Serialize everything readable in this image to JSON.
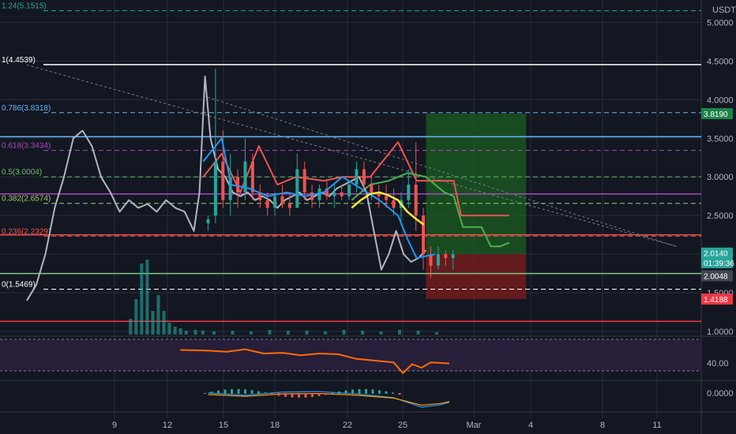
{
  "app": {
    "currency_label": "USDT"
  },
  "colors": {
    "background": "#131722",
    "grid": "#2a2e39",
    "axis_text": "#b2b5be",
    "price_line": "#b2b5be",
    "candle_up": "#26a69a",
    "candle_down": "#ef5350",
    "ma_yellow": "#ffeb3b",
    "ma_blue": "#2196f3",
    "ichimoku_red": "#ef5350",
    "ichimoku_green": "#4caf50",
    "rsi_line": "#ff6d00",
    "rsi_band": "#2a1f3d",
    "macd_line": "#2196f3",
    "signal_line": "#ff9800",
    "long_profit": "#1b5e20",
    "long_stop": "#7f1d1d",
    "tag_green": "#26a69a",
    "tag_gray": "#434651",
    "tag_red": "#f23645",
    "tag_darkgreen": "#1e8449"
  },
  "chart_data": {
    "type": "line",
    "y_axis_ticks": [
      "5.0000",
      "4.5000",
      "4.0000",
      "3.5000",
      "3.0000",
      "2.5000",
      "2.0000",
      "1.5000",
      "1.0000"
    ],
    "x_axis_ticks": [
      "9",
      "12",
      "15",
      "18",
      "22",
      "25",
      "Mar",
      "4",
      "8",
      "11"
    ],
    "fib_levels": [
      {
        "label": "1.24(5.1515)",
        "value": 5.1515,
        "color": "#26a69a"
      },
      {
        "label": "1(4.4539)",
        "value": 4.4539,
        "color": "#ffffff"
      },
      {
        "label": "0.786(3.8318)",
        "value": 3.8318,
        "color": "#64b5f6"
      },
      {
        "label": "0.618(3.3434)",
        "value": 3.3434,
        "color": "#ab47bc"
      },
      {
        "label": "0.5(3.0004)",
        "value": 3.0004,
        "color": "#66bb6a"
      },
      {
        "label": "0.382(2.6574)",
        "value": 2.6574,
        "color": "#9ccc65"
      },
      {
        "label": "0.236(2.2329)",
        "value": 2.2329,
        "color": "#ef5350"
      },
      {
        "label": "0(1.5469)",
        "value": 1.5469,
        "color": "#ffffff"
      }
    ],
    "horizontal_lines": [
      {
        "value": 3.52,
        "color": "#64b5f6"
      },
      {
        "value": 2.78,
        "color": "#ab47bc"
      },
      {
        "value": 2.25,
        "color": "#ef5350"
      },
      {
        "value": 1.75,
        "color": "#81c784"
      },
      {
        "value": 1.13,
        "color": "#f23645"
      }
    ],
    "price_tags": [
      {
        "label": "3.8190",
        "value": 3.819,
        "color": "#1e8449"
      },
      {
        "label": "2.0140",
        "value": 2.014,
        "color": "#26a69a"
      },
      {
        "label": "01:39:36",
        "value": 1.89,
        "color": "#26a69a"
      },
      {
        "label": "2.0048",
        "value": 1.72,
        "color": "#434651"
      },
      {
        "label": "1.4188",
        "value": 1.4188,
        "color": "#f23645"
      }
    ],
    "rsi_tick": "40.00",
    "macd_tick": "0.0000",
    "price_series": {
      "name": "",
      "points": [
        [
          0.0,
          1.4
        ],
        [
          0.5,
          1.6
        ],
        [
          1.0,
          2.0
        ],
        [
          1.5,
          2.6
        ],
        [
          2.0,
          3.0
        ],
        [
          2.5,
          3.5
        ],
        [
          3.0,
          3.6
        ],
        [
          3.5,
          3.4
        ],
        [
          4.0,
          3.0
        ],
        [
          4.5,
          2.8
        ],
        [
          5.0,
          2.55
        ],
        [
          5.5,
          2.7
        ],
        [
          6.0,
          2.6
        ],
        [
          6.5,
          2.65
        ],
        [
          7.0,
          2.55
        ],
        [
          7.5,
          2.7
        ],
        [
          8.0,
          2.6
        ],
        [
          8.5,
          2.55
        ],
        [
          9.0,
          2.3
        ],
        [
          9.3,
          2.8
        ],
        [
          9.6,
          4.3
        ],
        [
          9.9,
          3.5
        ],
        [
          10.3,
          3.1
        ],
        [
          10.7,
          3.0
        ],
        [
          11.1,
          2.8
        ],
        [
          11.5,
          2.75
        ],
        [
          11.9,
          2.8
        ],
        [
          12.3,
          2.7
        ],
        [
          12.7,
          2.75
        ],
        [
          13.1,
          2.7
        ],
        [
          13.5,
          2.6
        ],
        [
          13.9,
          2.7
        ],
        [
          14.3,
          2.75
        ],
        [
          14.7,
          2.8
        ],
        [
          15.1,
          2.7
        ],
        [
          15.5,
          2.75
        ],
        [
          15.9,
          2.8
        ],
        [
          16.3,
          2.75
        ],
        [
          16.7,
          2.85
        ],
        [
          17.1,
          2.9
        ],
        [
          17.5,
          2.95
        ],
        [
          17.9,
          3.0
        ],
        [
          18.3,
          2.8
        ],
        [
          18.7,
          2.3
        ],
        [
          19.1,
          1.8
        ],
        [
          19.5,
          2.0
        ],
        [
          19.9,
          2.3
        ],
        [
          20.3,
          2.0
        ],
        [
          20.7,
          1.9
        ],
        [
          21.1,
          1.95
        ],
        [
          21.5,
          2.05
        ]
      ]
    },
    "candle_series": {
      "name": "",
      "ohlc": [
        [
          9.0,
          2.4,
          2.5,
          2.3,
          2.45
        ],
        [
          9.4,
          2.5,
          4.4,
          2.4,
          3.2
        ],
        [
          9.8,
          3.2,
          3.6,
          2.6,
          2.7
        ],
        [
          10.2,
          2.7,
          3.3,
          2.5,
          3.0
        ],
        [
          10.6,
          3.0,
          3.1,
          2.6,
          2.8
        ],
        [
          11.0,
          2.8,
          3.5,
          2.7,
          3.2
        ],
        [
          11.4,
          3.2,
          3.3,
          2.7,
          2.8
        ],
        [
          11.8,
          2.8,
          2.9,
          2.6,
          2.7
        ],
        [
          12.2,
          2.7,
          2.8,
          2.5,
          2.6
        ],
        [
          12.6,
          2.6,
          2.8,
          2.5,
          2.75
        ],
        [
          13.0,
          2.75,
          2.9,
          2.6,
          2.65
        ],
        [
          13.4,
          2.65,
          2.8,
          2.5,
          2.6
        ],
        [
          13.8,
          2.6,
          3.3,
          2.6,
          3.1
        ],
        [
          14.2,
          3.1,
          3.2,
          2.7,
          2.8
        ],
        [
          14.6,
          2.8,
          2.9,
          2.6,
          2.7
        ],
        [
          15.0,
          2.7,
          2.9,
          2.6,
          2.85
        ],
        [
          15.4,
          2.85,
          2.95,
          2.7,
          2.75
        ],
        [
          15.8,
          2.75,
          2.9,
          2.6,
          2.8
        ],
        [
          16.2,
          2.8,
          2.9,
          2.7,
          2.75
        ],
        [
          16.6,
          2.75,
          2.95,
          2.7,
          2.9
        ],
        [
          17.0,
          2.9,
          3.2,
          2.8,
          3.1
        ],
        [
          17.4,
          3.1,
          3.2,
          2.8,
          2.9
        ],
        [
          17.8,
          2.9,
          3.0,
          2.7,
          2.8
        ],
        [
          18.2,
          2.8,
          2.9,
          2.6,
          2.75
        ],
        [
          18.6,
          2.75,
          2.9,
          2.6,
          2.7
        ],
        [
          19.0,
          2.7,
          2.85,
          2.5,
          2.6
        ],
        [
          19.4,
          2.6,
          2.8,
          2.4,
          2.7
        ],
        [
          19.8,
          2.7,
          3.1,
          2.6,
          2.9
        ],
        [
          20.2,
          2.9,
          3.45,
          2.3,
          2.5
        ],
        [
          20.6,
          2.5,
          2.6,
          1.8,
          2.0
        ],
        [
          21.0,
          2.0,
          2.1,
          1.7,
          1.85
        ],
        [
          21.4,
          1.85,
          2.1,
          1.8,
          2.0
        ],
        [
          21.8,
          2.0,
          2.05,
          1.85,
          1.95
        ],
        [
          22.2,
          1.95,
          2.05,
          1.8,
          2.0
        ]
      ]
    },
    "ma_blue": {
      "name": "",
      "points": [
        [
          9.5,
          3.2
        ],
        [
          10.5,
          3.5
        ],
        [
          11.0,
          2.9
        ],
        [
          12.0,
          2.85
        ],
        [
          13.0,
          2.75
        ],
        [
          14.0,
          2.8
        ],
        [
          15.0,
          2.75
        ],
        [
          16.0,
          2.8
        ],
        [
          17.0,
          3.0
        ],
        [
          18.0,
          2.85
        ],
        [
          19.0,
          2.7
        ],
        [
          20.0,
          2.5
        ],
        [
          20.5,
          2.2
        ],
        [
          21.0,
          1.95
        ],
        [
          22.0,
          2.0
        ]
      ]
    },
    "ma_yellow": {
      "name": "",
      "points": [
        [
          17.5,
          2.6
        ],
        [
          18.0,
          2.7
        ],
        [
          18.5,
          2.78
        ],
        [
          19.0,
          2.8
        ],
        [
          19.5,
          2.76
        ],
        [
          20.0,
          2.7
        ],
        [
          20.5,
          2.55
        ],
        [
          21.0,
          2.45
        ],
        [
          21.4,
          2.38
        ]
      ]
    },
    "ichimoku_red": {
      "name": "",
      "points": [
        [
          9.5,
          3.0
        ],
        [
          10.5,
          3.3
        ],
        [
          11.5,
          2.8
        ],
        [
          12.5,
          3.4
        ],
        [
          13.5,
          2.9
        ],
        [
          14.5,
          3.0
        ],
        [
          16.0,
          2.95
        ],
        [
          17.0,
          3.0
        ],
        [
          18.5,
          3.0
        ],
        [
          20.0,
          3.45
        ],
        [
          21.0,
          2.95
        ],
        [
          22.0,
          2.95
        ],
        [
          23.0,
          2.95
        ],
        [
          23.4,
          2.5
        ],
        [
          25.0,
          2.5
        ],
        [
          26.0,
          2.5
        ]
      ]
    },
    "ichimoku_green": {
      "name": "",
      "points": [
        [
          17.5,
          2.7
        ],
        [
          18.5,
          2.9
        ],
        [
          19.5,
          2.95
        ],
        [
          20.5,
          3.05
        ],
        [
          21.5,
          3.0
        ],
        [
          22.5,
          2.8
        ],
        [
          23.0,
          2.75
        ],
        [
          23.5,
          2.35
        ],
        [
          24.5,
          2.35
        ],
        [
          25.0,
          2.1
        ],
        [
          25.5,
          2.1
        ],
        [
          26.0,
          2.15
        ]
      ]
    },
    "long_position": {
      "x_start": 21.0,
      "x_end": 25.5,
      "entry": 2.0,
      "target": 3.82,
      "stop": 1.42
    },
    "trendline": {
      "p1": [
        0,
        4.45
      ],
      "p2": [
        35,
        2.1
      ]
    },
    "trendline2": {
      "p1": [
        9.5,
        4.05
      ],
      "p2": [
        35,
        2.1
      ]
    },
    "volume": [
      [
        5.5,
        0.2
      ],
      [
        5.8,
        0.45
      ],
      [
        6.1,
        0.9
      ],
      [
        6.4,
        0.95
      ],
      [
        6.7,
        0.3
      ],
      [
        7.0,
        0.5
      ],
      [
        7.3,
        0.3
      ],
      [
        7.6,
        0.15
      ],
      [
        7.9,
        0.1
      ],
      [
        8.2,
        0.08
      ],
      [
        8.5,
        0.05
      ],
      [
        9.0,
        0.06
      ],
      [
        9.4,
        0.05
      ],
      [
        10.0,
        0.04
      ],
      [
        11.0,
        0.05
      ],
      [
        12.0,
        0.04
      ],
      [
        13.0,
        0.06
      ],
      [
        14.0,
        0.05
      ],
      [
        15.0,
        0.05
      ],
      [
        16.0,
        0.04
      ],
      [
        17.0,
        0.06
      ],
      [
        18.0,
        0.05
      ],
      [
        19.0,
        0.04
      ],
      [
        20.0,
        0.06
      ],
      [
        21.0,
        0.05
      ],
      [
        22.0,
        0.03
      ]
    ],
    "rsi": [
      [
        7.5,
        0.7
      ],
      [
        9.0,
        0.68
      ],
      [
        10.0,
        0.65
      ],
      [
        11.0,
        0.72
      ],
      [
        12.0,
        0.6
      ],
      [
        13.0,
        0.62
      ],
      [
        14.0,
        0.55
      ],
      [
        15.0,
        0.6
      ],
      [
        16.0,
        0.58
      ],
      [
        17.0,
        0.45
      ],
      [
        18.0,
        0.4
      ],
      [
        19.0,
        0.35
      ],
      [
        19.5,
        0.05
      ],
      [
        20.0,
        0.3
      ],
      [
        20.5,
        0.2
      ],
      [
        21.0,
        0.35
      ],
      [
        22.0,
        0.32
      ]
    ],
    "macd": [
      [
        9.0,
        0.0
      ],
      [
        11.0,
        -0.05
      ],
      [
        13.0,
        0.02
      ],
      [
        15.0,
        0.03
      ],
      [
        17.0,
        -0.02
      ],
      [
        19.0,
        -0.1
      ],
      [
        20.5,
        -0.3
      ],
      [
        21.5,
        -0.25
      ],
      [
        22.0,
        -0.2
      ]
    ]
  }
}
